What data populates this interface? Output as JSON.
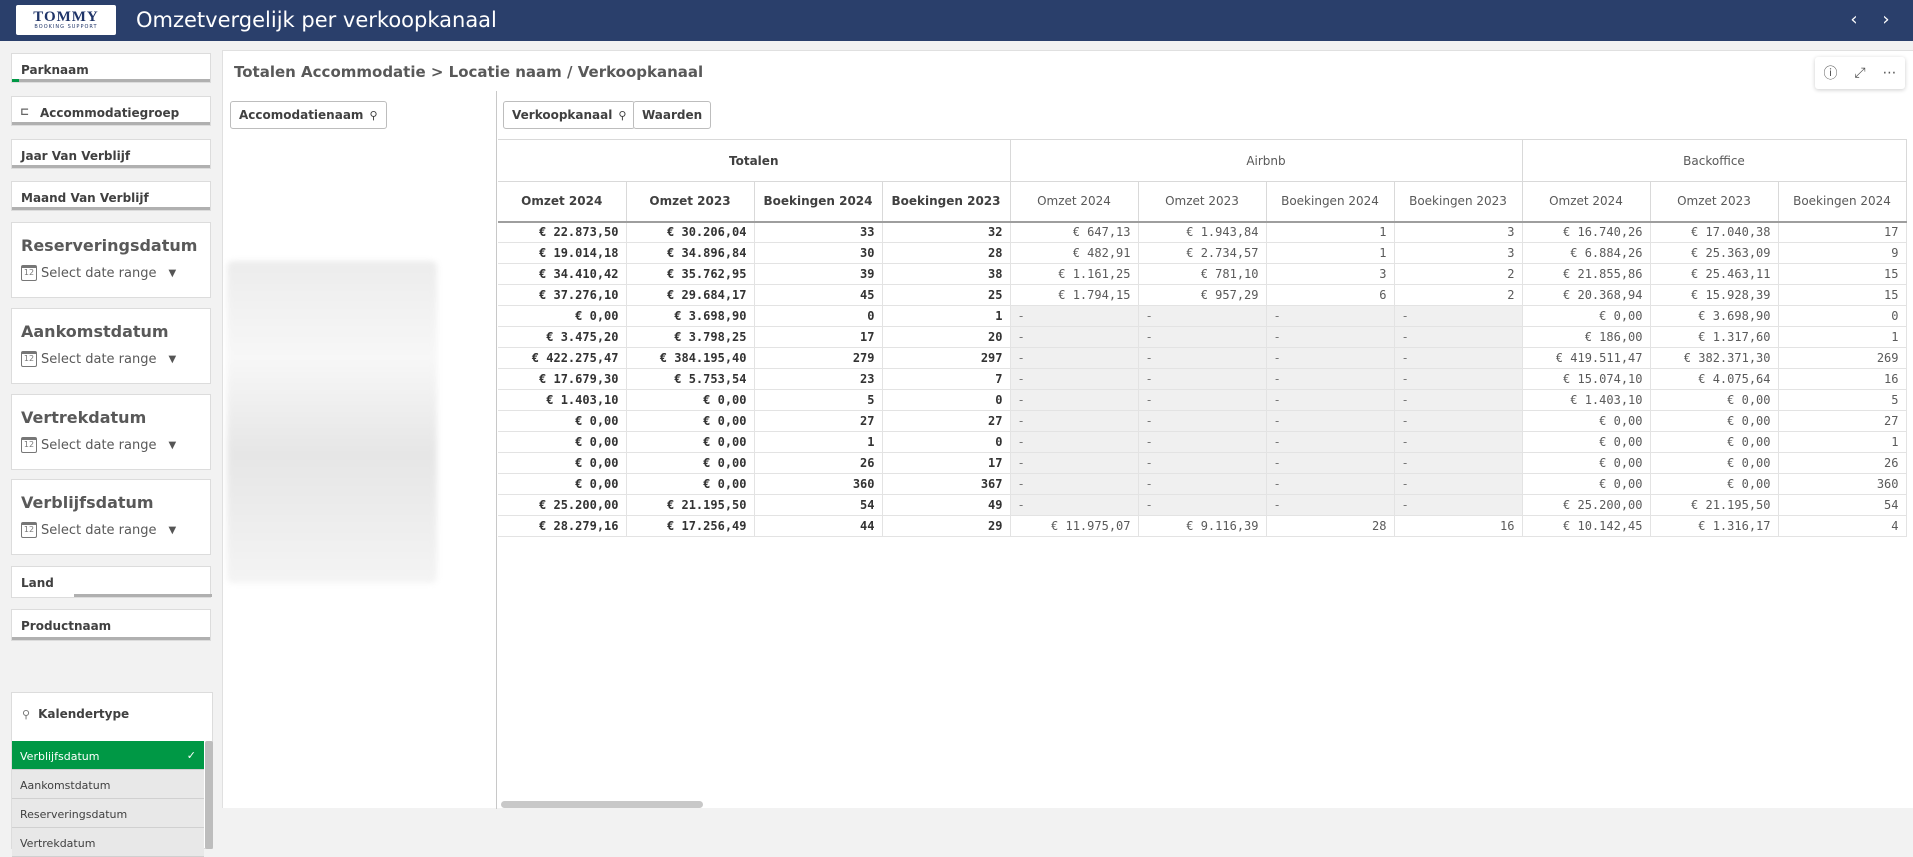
{
  "header": {
    "logo_main": "TOMMY",
    "logo_sub": "BOOKING SUPPORT",
    "title": "Omzetvergelijk per verkoopkanaal",
    "prev_icon": "‹",
    "next_icon": "›"
  },
  "sidebar": {
    "filters": [
      {
        "label": "Parknaam"
      },
      {
        "label": "Accommodatiegroep"
      },
      {
        "label": "Jaar Van Verblijf"
      },
      {
        "label": "Maand Van Verblijf"
      }
    ],
    "dates": [
      {
        "label": "Reserveringsdatum",
        "placeholder": "Select date range"
      },
      {
        "label": "Aankomstdatum",
        "placeholder": "Select date range"
      },
      {
        "label": "Vertrekdatum",
        "placeholder": "Select date range"
      },
      {
        "label": "Verblijfsdatum",
        "placeholder": "Select date range"
      }
    ],
    "filters2": [
      {
        "label": "Land"
      },
      {
        "label": "Productnaam"
      }
    ],
    "kalender": {
      "title": "Kalendertype",
      "items": [
        {
          "label": "Verblijfsdatum",
          "selected": true
        },
        {
          "label": "Aankomstdatum"
        },
        {
          "label": "Reserveringsdatum"
        },
        {
          "label": "Vertrekdatum"
        }
      ]
    }
  },
  "main": {
    "title": "Totalen Accommodatie > Locatie naam / Verkoopkanaal",
    "dim_row": "Accomodatienaam",
    "dim_col": "Verkoopkanaal",
    "values_btn": "Waarden",
    "groups": [
      "Totalen",
      "Airbnb",
      "Backoffice"
    ],
    "columns": [
      "Omzet 2024",
      "Omzet 2023",
      "Boekingen 2024",
      "Boekingen 2023",
      "Omzet 2024",
      "Omzet 2023",
      "Boekingen 2024",
      "Boekingen 2023",
      "Omzet 2024",
      "Omzet 2023",
      "Boekingen 2024"
    ],
    "rows": [
      [
        "€ 22.873,50",
        "€ 30.206,04",
        "33",
        "32",
        "€ 647,13",
        "€ 1.943,84",
        "1",
        "3",
        "€ 16.740,26",
        "€ 17.040,38",
        "17"
      ],
      [
        "€ 19.014,18",
        "€ 34.896,84",
        "30",
        "28",
        "€ 482,91",
        "€ 2.734,57",
        "1",
        "3",
        "€ 6.884,26",
        "€ 25.363,09",
        "9"
      ],
      [
        "€ 34.410,42",
        "€ 35.762,95",
        "39",
        "38",
        "€ 1.161,25",
        "€ 781,10",
        "3",
        "2",
        "€ 21.855,86",
        "€ 25.463,11",
        "15"
      ],
      [
        "€ 37.276,10",
        "€ 29.684,17",
        "45",
        "25",
        "€ 1.794,15",
        "€ 957,29",
        "6",
        "2",
        "€ 20.368,94",
        "€ 15.928,39",
        "15"
      ],
      [
        "€ 0,00",
        "€ 3.698,90",
        "0",
        "1",
        "-",
        "-",
        "-",
        "-",
        "€ 0,00",
        "€ 3.698,90",
        "0"
      ],
      [
        "€ 3.475,20",
        "€ 3.798,25",
        "17",
        "20",
        "-",
        "-",
        "-",
        "-",
        "€ 186,00",
        "€ 1.317,60",
        "1"
      ],
      [
        "€ 422.275,47",
        "€ 384.195,40",
        "279",
        "297",
        "-",
        "-",
        "-",
        "-",
        "€ 419.511,47",
        "€ 382.371,30",
        "269"
      ],
      [
        "€ 17.679,30",
        "€ 5.753,54",
        "23",
        "7",
        "-",
        "-",
        "-",
        "-",
        "€ 15.074,10",
        "€ 4.075,64",
        "16"
      ],
      [
        "€ 1.403,10",
        "€ 0,00",
        "5",
        "0",
        "-",
        "-",
        "-",
        "-",
        "€ 1.403,10",
        "€ 0,00",
        "5"
      ],
      [
        "€ 0,00",
        "€ 0,00",
        "27",
        "27",
        "-",
        "-",
        "-",
        "-",
        "€ 0,00",
        "€ 0,00",
        "27"
      ],
      [
        "€ 0,00",
        "€ 0,00",
        "1",
        "0",
        "-",
        "-",
        "-",
        "-",
        "€ 0,00",
        "€ 0,00",
        "1"
      ],
      [
        "€ 0,00",
        "€ 0,00",
        "26",
        "17",
        "-",
        "-",
        "-",
        "-",
        "€ 0,00",
        "€ 0,00",
        "26"
      ],
      [
        "€ 0,00",
        "€ 0,00",
        "360",
        "367",
        "-",
        "-",
        "-",
        "-",
        "€ 0,00",
        "€ 0,00",
        "360"
      ],
      [
        "€ 25.200,00",
        "€ 21.195,50",
        "54",
        "49",
        "-",
        "-",
        "-",
        "-",
        "€ 25.200,00",
        "€ 21.195,50",
        "54"
      ],
      [
        "€ 28.279,16",
        "€ 17.256,49",
        "44",
        "29",
        "€ 11.975,07",
        "€ 9.116,39",
        "28",
        "16",
        "€ 10.142,45",
        "€ 1.316,17",
        "4"
      ]
    ]
  }
}
